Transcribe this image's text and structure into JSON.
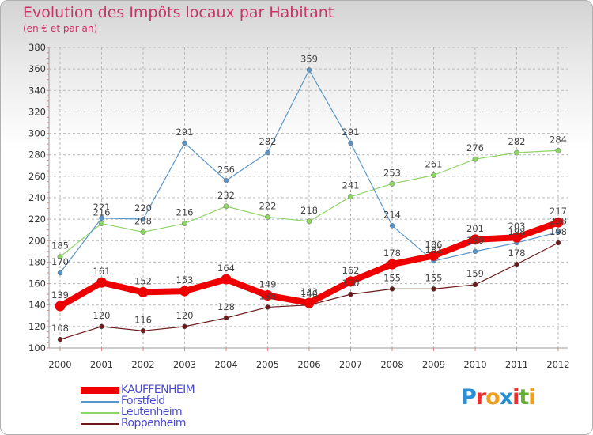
{
  "header": {
    "title": "Evolution des Impôts locaux par Habitant",
    "subtitle": "(en € et par an)"
  },
  "logo": {
    "letters": [
      "P",
      "r",
      "o",
      "x",
      "i",
      "t",
      "i"
    ],
    "colors": [
      "#2a8fd5",
      "#e83030",
      "#f0a020",
      "#2a8fd5",
      "#e83030",
      "#60b030",
      "#f0a020"
    ]
  },
  "chart_data": {
    "type": "line",
    "title": "Evolution des Impôts locaux par Habitant",
    "subtitle": "(en € et par an)",
    "xlabel": "",
    "ylabel": "",
    "ylim": [
      100,
      380
    ],
    "yticks": [
      100,
      120,
      140,
      160,
      180,
      200,
      220,
      240,
      260,
      280,
      300,
      320,
      340,
      360,
      380
    ],
    "categories": [
      "2000",
      "2001",
      "2002",
      "2003",
      "2004",
      "2005",
      "2006",
      "2007",
      "2008",
      "2009",
      "2010",
      "2011",
      "2012"
    ],
    "series": [
      {
        "name": "Roppenheim",
        "color": "#6b1a1a",
        "width": 1.2,
        "dot": 3,
        "values": [
          108,
          120,
          116,
          120,
          128,
          138,
          140,
          150,
          155,
          155,
          159,
          178,
          198
        ]
      },
      {
        "name": "Leutenheim",
        "color": "#8fd468",
        "width": 1.2,
        "dot": 3.2,
        "values": [
          185,
          216,
          208,
          216,
          232,
          222,
          218,
          241,
          253,
          261,
          276,
          282,
          284
        ]
      },
      {
        "name": "Forstfeld",
        "color": "#5b95c8",
        "width": 1.2,
        "dot": 3,
        "values": [
          170,
          221,
          220,
          291,
          256,
          282,
          359,
          291,
          214,
          181,
          190,
          198,
          208
        ]
      },
      {
        "name": "KAUFFENHEIM",
        "color": "#ee0000",
        "width": 8,
        "dot": 6.5,
        "values": [
          139,
          161,
          152,
          153,
          164,
          149,
          142,
          162,
          178,
          186,
          201,
          203,
          217
        ]
      }
    ],
    "legend_order": [
      "KAUFFENHEIM",
      "Forstfeld",
      "Leutenheim",
      "Roppenheim"
    ],
    "legend_position": "bottom-left"
  }
}
